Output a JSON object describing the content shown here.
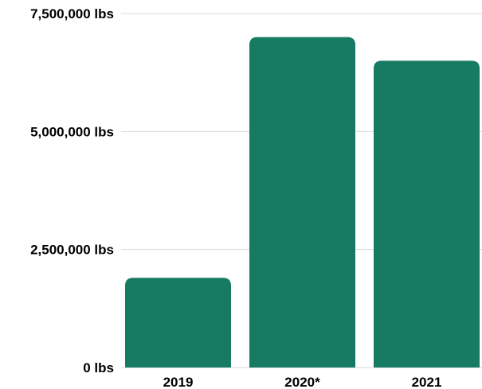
{
  "chart_data": {
    "type": "bar",
    "title": "",
    "xlabel": "",
    "ylabel": "",
    "categories": [
      "2019",
      "2020*",
      "2021"
    ],
    "values": [
      1900000,
      7000000,
      6500000
    ],
    "ylim": [
      0,
      7500000
    ],
    "yticks": [
      {
        "value": 0,
        "label": "0 lbs"
      },
      {
        "value": 2500000,
        "label": "2,500,000 lbs"
      },
      {
        "value": 5000000,
        "label": "5,000,000 lbs"
      },
      {
        "value": 7500000,
        "label": "7,500,000 lbs"
      }
    ],
    "grid": true,
    "legend": "none",
    "bar_color": "#177a63"
  }
}
